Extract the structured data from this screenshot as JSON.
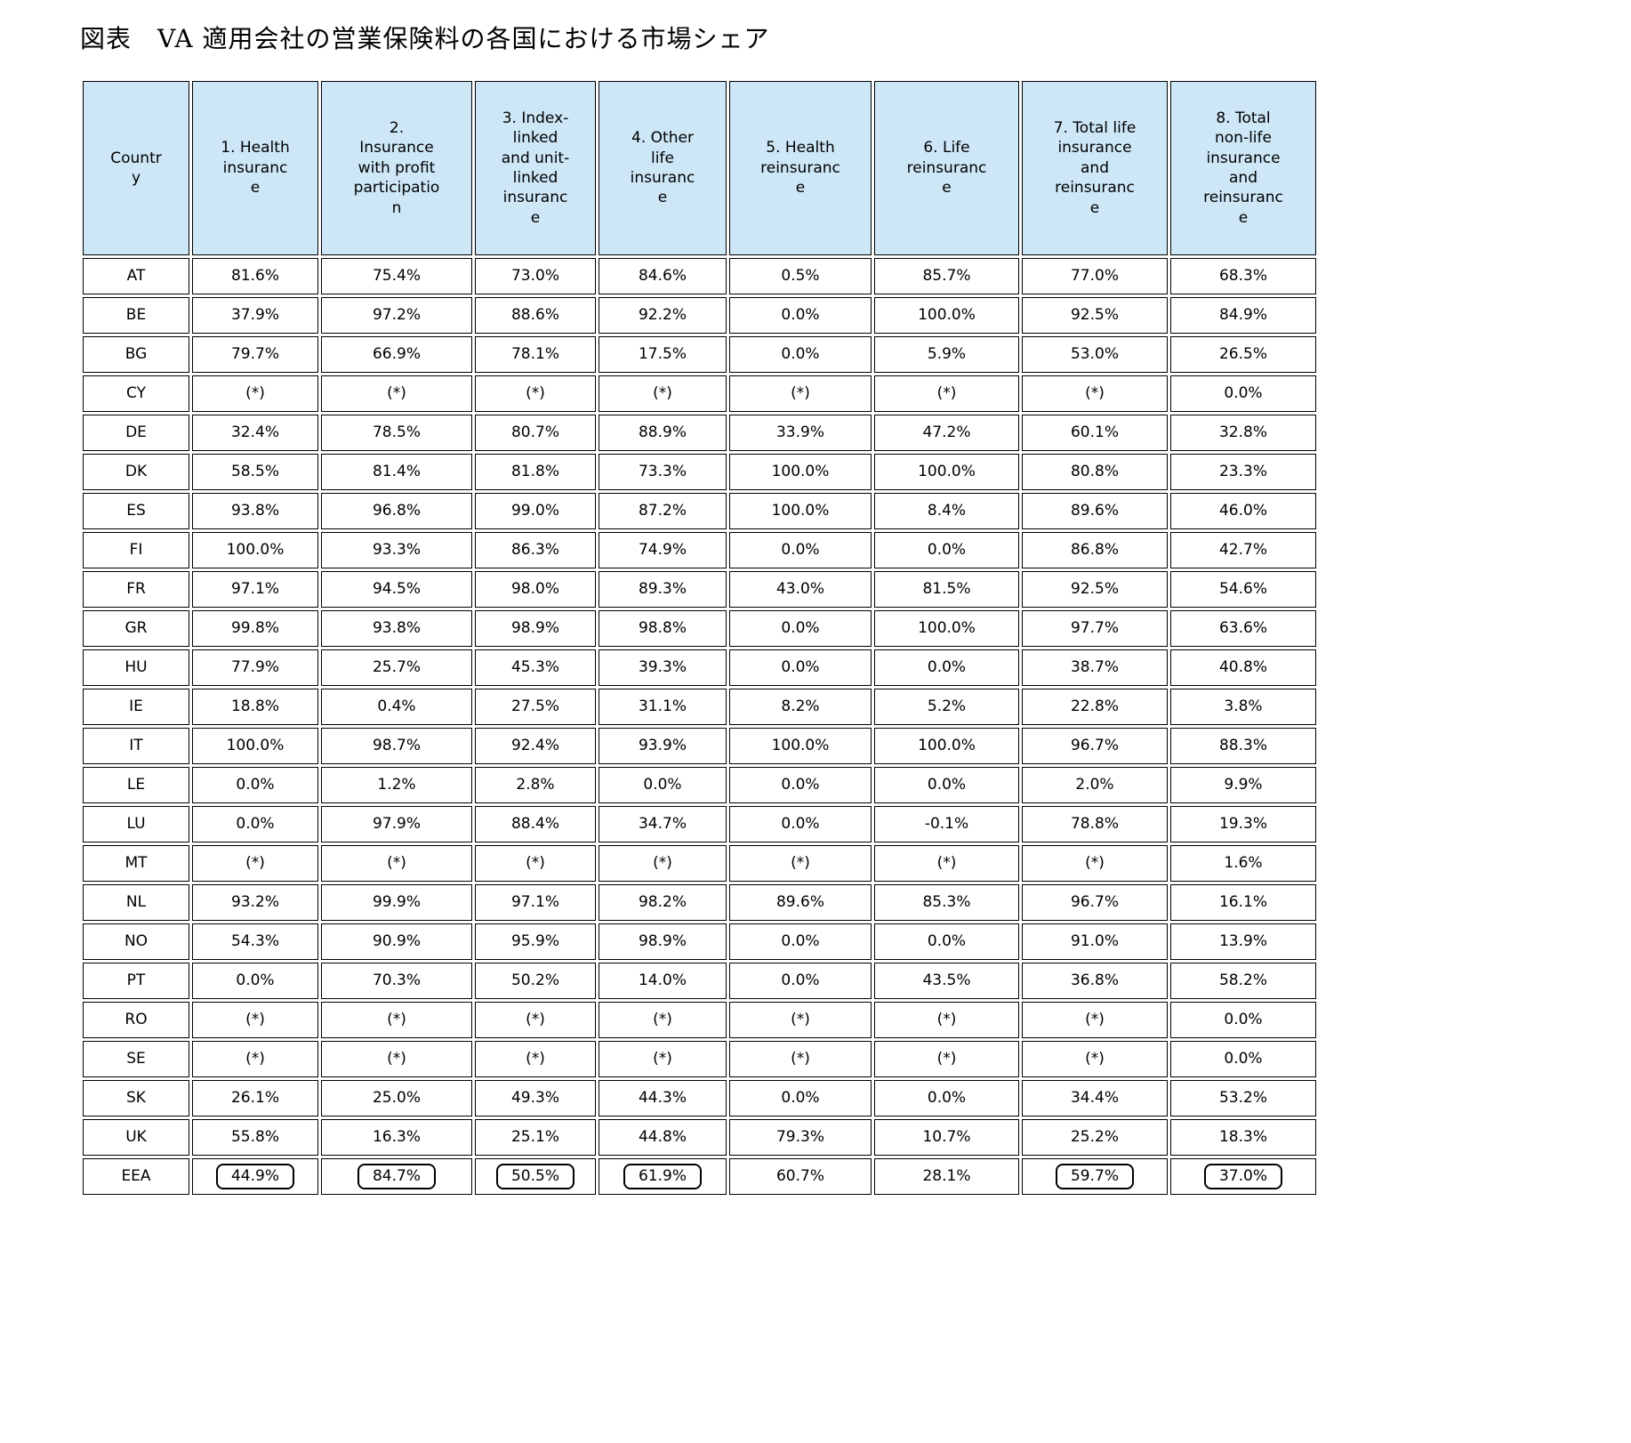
{
  "title": "図表　VA 適用会社の営業保険料の各国における市場シェア",
  "colors": {
    "header_bg": "#cde7f7",
    "border": "#000000"
  },
  "table": {
    "headers": [
      "Countr\ny",
      "1. Health\ninsuranc\ne",
      "2.\nInsurance\nwith profit\nparticipatio\nn",
      "3. Index-\nlinked\nand unit-\nlinked\ninsuranc\ne",
      "4. Other\nlife\ninsuranc\ne",
      "5. Health\nreinsuranc\ne",
      "6. Life\nreinsuranc\ne",
      "7. Total life\ninsurance\nand\nreinsuranc\ne",
      "8. Total\nnon-life\ninsurance\nand\nreinsuranc\ne"
    ],
    "boxed_row": "EEA",
    "boxed_columns": [
      0,
      1,
      2,
      3,
      6,
      7
    ],
    "rows": [
      {
        "country": "AT",
        "values": [
          "81.6%",
          "75.4%",
          "73.0%",
          "84.6%",
          "0.5%",
          "85.7%",
          "77.0%",
          "68.3%"
        ]
      },
      {
        "country": "BE",
        "values": [
          "37.9%",
          "97.2%",
          "88.6%",
          "92.2%",
          "0.0%",
          "100.0%",
          "92.5%",
          "84.9%"
        ]
      },
      {
        "country": "BG",
        "values": [
          "79.7%",
          "66.9%",
          "78.1%",
          "17.5%",
          "0.0%",
          "5.9%",
          "53.0%",
          "26.5%"
        ]
      },
      {
        "country": "CY",
        "values": [
          "(*)",
          "(*)",
          "(*)",
          "(*)",
          "(*)",
          "(*)",
          "(*)",
          "0.0%"
        ]
      },
      {
        "country": "DE",
        "values": [
          "32.4%",
          "78.5%",
          "80.7%",
          "88.9%",
          "33.9%",
          "47.2%",
          "60.1%",
          "32.8%"
        ]
      },
      {
        "country": "DK",
        "values": [
          "58.5%",
          "81.4%",
          "81.8%",
          "73.3%",
          "100.0%",
          "100.0%",
          "80.8%",
          "23.3%"
        ]
      },
      {
        "country": "ES",
        "values": [
          "93.8%",
          "96.8%",
          "99.0%",
          "87.2%",
          "100.0%",
          "8.4%",
          "89.6%",
          "46.0%"
        ]
      },
      {
        "country": "FI",
        "values": [
          "100.0%",
          "93.3%",
          "86.3%",
          "74.9%",
          "0.0%",
          "0.0%",
          "86.8%",
          "42.7%"
        ]
      },
      {
        "country": "FR",
        "values": [
          "97.1%",
          "94.5%",
          "98.0%",
          "89.3%",
          "43.0%",
          "81.5%",
          "92.5%",
          "54.6%"
        ]
      },
      {
        "country": "GR",
        "values": [
          "99.8%",
          "93.8%",
          "98.9%",
          "98.8%",
          "0.0%",
          "100.0%",
          "97.7%",
          "63.6%"
        ]
      },
      {
        "country": "HU",
        "values": [
          "77.9%",
          "25.7%",
          "45.3%",
          "39.3%",
          "0.0%",
          "0.0%",
          "38.7%",
          "40.8%"
        ]
      },
      {
        "country": "IE",
        "values": [
          "18.8%",
          "0.4%",
          "27.5%",
          "31.1%",
          "8.2%",
          "5.2%",
          "22.8%",
          "3.8%"
        ]
      },
      {
        "country": "IT",
        "values": [
          "100.0%",
          "98.7%",
          "92.4%",
          "93.9%",
          "100.0%",
          "100.0%",
          "96.7%",
          "88.3%"
        ]
      },
      {
        "country": "LE",
        "values": [
          "0.0%",
          "1.2%",
          "2.8%",
          "0.0%",
          "0.0%",
          "0.0%",
          "2.0%",
          "9.9%"
        ]
      },
      {
        "country": "LU",
        "values": [
          "0.0%",
          "97.9%",
          "88.4%",
          "34.7%",
          "0.0%",
          "-0.1%",
          "78.8%",
          "19.3%"
        ]
      },
      {
        "country": "MT",
        "values": [
          "(*)",
          "(*)",
          "(*)",
          "(*)",
          "(*)",
          "(*)",
          "(*)",
          "1.6%"
        ]
      },
      {
        "country": "NL",
        "values": [
          "93.2%",
          "99.9%",
          "97.1%",
          "98.2%",
          "89.6%",
          "85.3%",
          "96.7%",
          "16.1%"
        ]
      },
      {
        "country": "NO",
        "values": [
          "54.3%",
          "90.9%",
          "95.9%",
          "98.9%",
          "0.0%",
          "0.0%",
          "91.0%",
          "13.9%"
        ]
      },
      {
        "country": "PT",
        "values": [
          "0.0%",
          "70.3%",
          "50.2%",
          "14.0%",
          "0.0%",
          "43.5%",
          "36.8%",
          "58.2%"
        ]
      },
      {
        "country": "RO",
        "values": [
          "(*)",
          "(*)",
          "(*)",
          "(*)",
          "(*)",
          "(*)",
          "(*)",
          "0.0%"
        ]
      },
      {
        "country": "SE",
        "values": [
          "(*)",
          "(*)",
          "(*)",
          "(*)",
          "(*)",
          "(*)",
          "(*)",
          "0.0%"
        ]
      },
      {
        "country": "SK",
        "values": [
          "26.1%",
          "25.0%",
          "49.3%",
          "44.3%",
          "0.0%",
          "0.0%",
          "34.4%",
          "53.2%"
        ]
      },
      {
        "country": "UK",
        "values": [
          "55.8%",
          "16.3%",
          "25.1%",
          "44.8%",
          "79.3%",
          "10.7%",
          "25.2%",
          "18.3%"
        ]
      },
      {
        "country": "EEA",
        "values": [
          "44.9%",
          "84.7%",
          "50.5%",
          "61.9%",
          "60.7%",
          "28.1%",
          "59.7%",
          "37.0%"
        ]
      }
    ]
  }
}
